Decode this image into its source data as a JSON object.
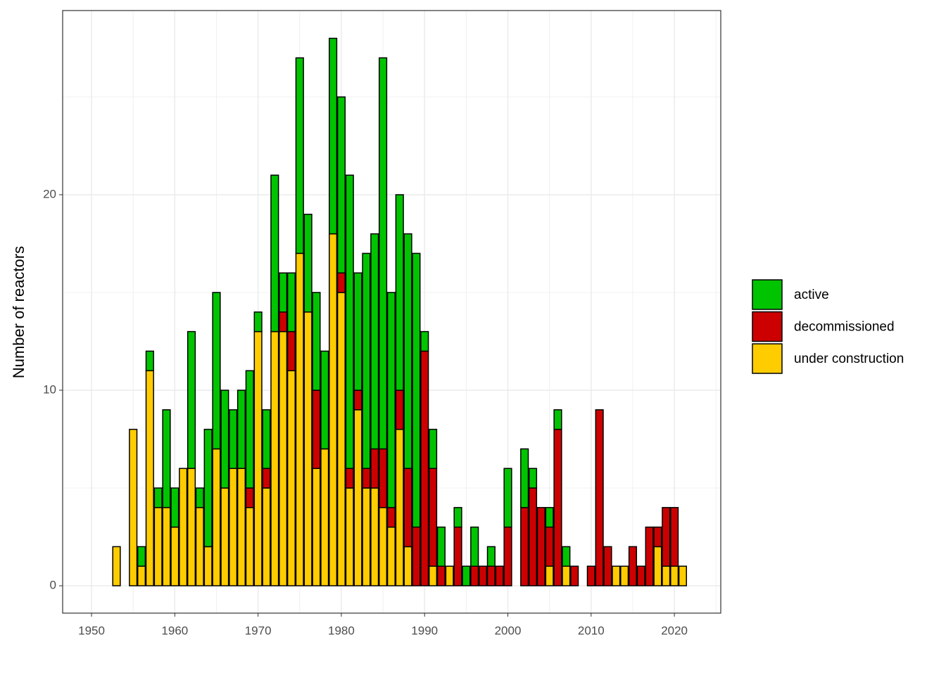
{
  "chart_data": {
    "type": "stacked_bar",
    "ylabel": "Number of reactors",
    "x": [
      1953,
      1955,
      1956,
      1957,
      1958,
      1959,
      1960,
      1961,
      1962,
      1963,
      1964,
      1965,
      1966,
      1967,
      1968,
      1969,
      1970,
      1971,
      1972,
      1973,
      1974,
      1975,
      1976,
      1977,
      1978,
      1979,
      1980,
      1981,
      1982,
      1983,
      1984,
      1985,
      1986,
      1987,
      1988,
      1989,
      1990,
      1991,
      1992,
      1993,
      1994,
      1995,
      1996,
      1997,
      1998,
      1999,
      2000,
      2002,
      2003,
      2004,
      2005,
      2006,
      2007,
      2008,
      2010,
      2011,
      2012,
      2013,
      2014,
      2015,
      2016,
      2017,
      2018,
      2019,
      2020,
      2021
    ],
    "series": [
      {
        "name": "active",
        "color": "#00c400",
        "values": [
          0,
          0,
          1,
          1,
          1,
          5,
          2,
          0,
          7,
          1,
          6,
          8,
          5,
          3,
          4,
          6,
          1,
          3,
          8,
          2,
          3,
          10,
          5,
          5,
          5,
          10,
          9,
          15,
          6,
          11,
          11,
          20,
          11,
          10,
          12,
          14,
          1,
          2,
          2,
          0,
          1,
          1,
          2,
          0,
          1,
          0,
          3,
          3,
          1,
          0,
          1,
          1,
          1,
          0,
          0,
          0,
          0,
          0,
          0,
          0,
          0,
          0,
          0,
          0,
          0,
          0
        ]
      },
      {
        "name": "decommissioned",
        "color": "#cc0000",
        "values": [
          0,
          0,
          0,
          0,
          0,
          0,
          0,
          0,
          0,
          0,
          0,
          0,
          0,
          0,
          0,
          1,
          0,
          1,
          0,
          1,
          2,
          0,
          0,
          4,
          0,
          0,
          1,
          1,
          1,
          1,
          2,
          3,
          1,
          2,
          4,
          3,
          12,
          5,
          1,
          0,
          3,
          0,
          1,
          1,
          1,
          1,
          3,
          4,
          5,
          4,
          2,
          8,
          0,
          1,
          1,
          9,
          2,
          0,
          0,
          2,
          1,
          3,
          1,
          3,
          3,
          0
        ]
      },
      {
        "name": "under construction",
        "color": "#ffcc00",
        "values": [
          2,
          8,
          1,
          11,
          4,
          4,
          3,
          6,
          6,
          4,
          2,
          7,
          5,
          6,
          6,
          4,
          13,
          5,
          13,
          13,
          11,
          17,
          14,
          6,
          7,
          18,
          15,
          5,
          9,
          5,
          5,
          4,
          3,
          8,
          2,
          0,
          0,
          1,
          0,
          1,
          0,
          0,
          0,
          0,
          0,
          0,
          0,
          0,
          0,
          0,
          1,
          0,
          1,
          0,
          0,
          0,
          0,
          1,
          1,
          0,
          0,
          0,
          2,
          1,
          1,
          1
        ]
      }
    ],
    "xlim": [
      1946.53,
      2025.57
    ],
    "xticks": [
      1950,
      1960,
      1970,
      1980,
      1990,
      2000,
      2010,
      2020
    ],
    "x_minor_ticks": [
      1955,
      1965,
      1975,
      1985,
      1995,
      2005,
      2015,
      2025
    ],
    "ylim": [
      -1.4,
      29.42
    ],
    "yticks": [
      0,
      10,
      20
    ],
    "y_minor_ticks": [
      5,
      15,
      25
    ],
    "grid": true,
    "legend": "right"
  }
}
